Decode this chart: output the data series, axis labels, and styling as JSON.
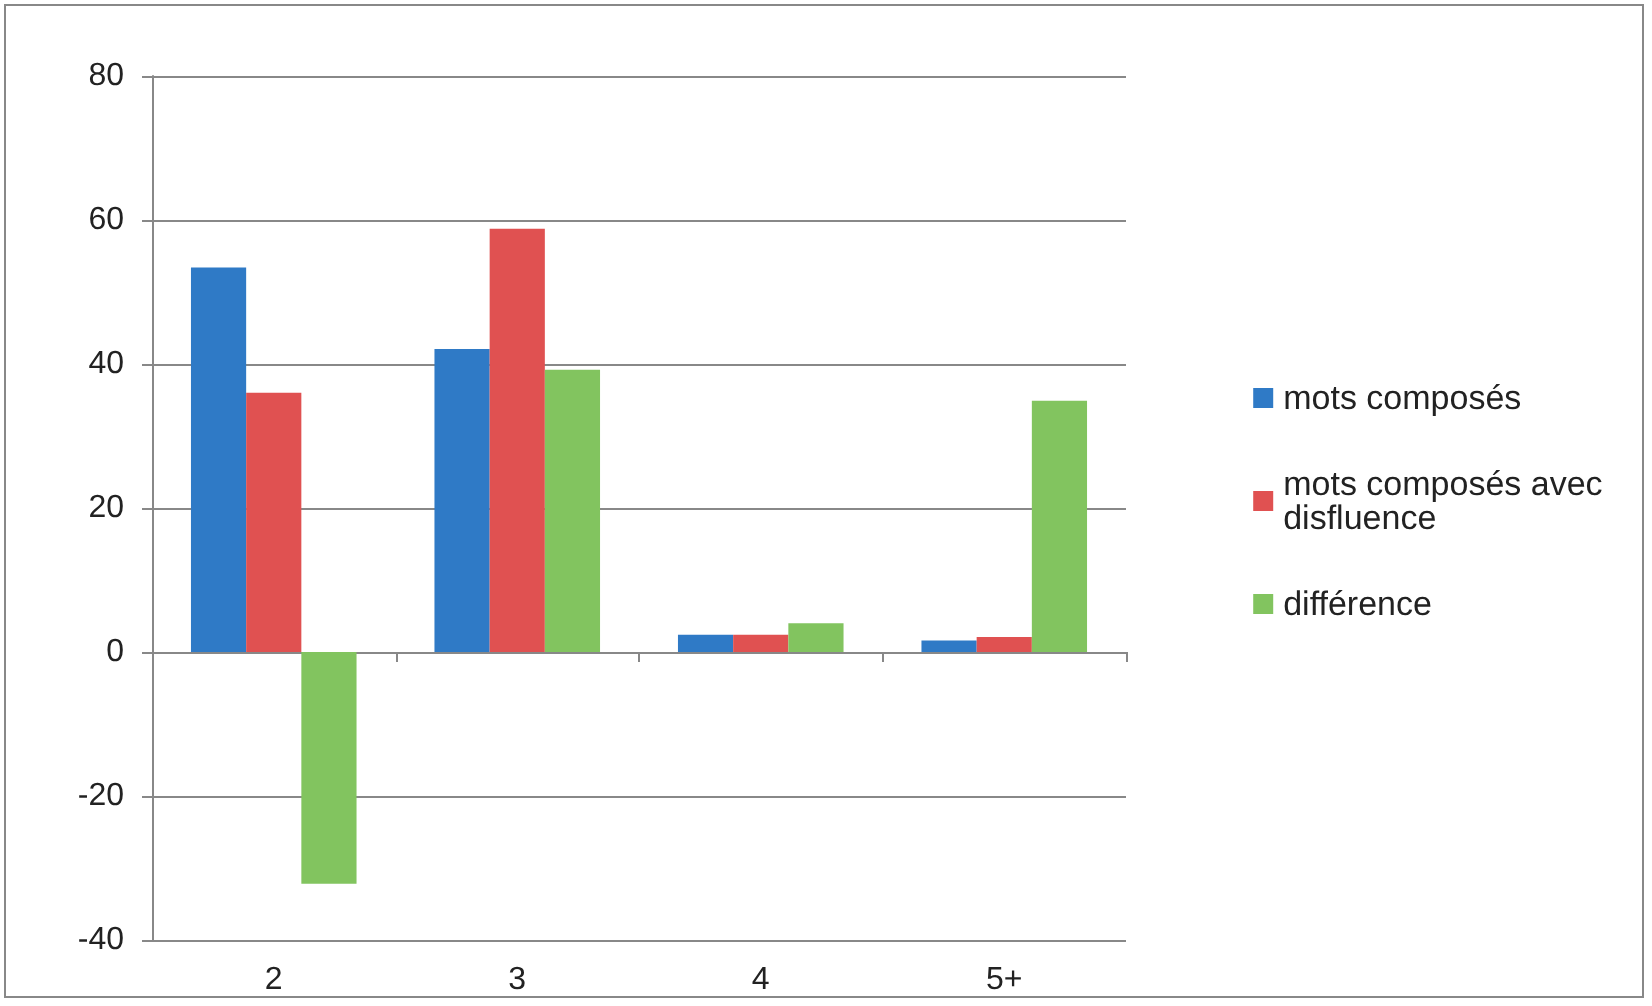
{
  "chart_data": {
    "type": "bar",
    "categories": [
      "2",
      "3",
      "4",
      "5+"
    ],
    "series": [
      {
        "name": "mots composés",
        "color": "#2f7ac6",
        "values": [
          53.4,
          42.1,
          2.4,
          1.6
        ]
      },
      {
        "name": "mots composés avec disfluence",
        "color": "#e05151",
        "values": [
          36,
          58.8,
          2.4,
          2.1
        ]
      },
      {
        "name": "différence",
        "color": "#82c45f",
        "values": [
          -32.2,
          39.2,
          4,
          34.9
        ]
      }
    ],
    "ylim": [
      -40,
      80
    ],
    "yticks": [
      -40,
      -20,
      0,
      20,
      40,
      60,
      80
    ],
    "grid": "y",
    "legend": "right"
  }
}
